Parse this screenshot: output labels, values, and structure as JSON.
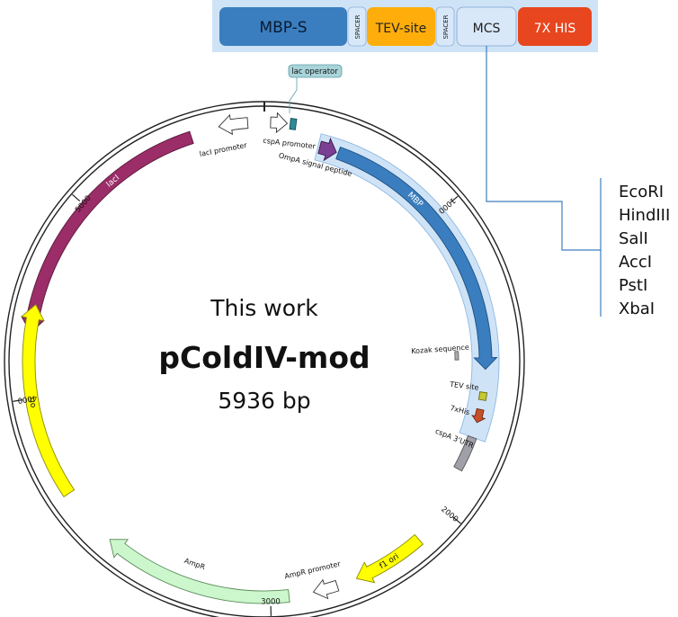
{
  "plasmid": {
    "label": "This work",
    "name": "pColdIV-mod",
    "size": "5936 bp"
  },
  "construct": {
    "segments": [
      {
        "label": "MBP-S",
        "color": "#3a7ebf"
      },
      {
        "label": "SPACER",
        "color": "#d8e8f8"
      },
      {
        "label": "TEV-site",
        "color": "#ffad0a"
      },
      {
        "label": "SPACER",
        "color": "#d8e8f8"
      },
      {
        "label": "MCS",
        "color": "#d8e8f8"
      },
      {
        "label": "7X HIS",
        "color": "#e8461e"
      }
    ],
    "background_color": "#cfe3f7"
  },
  "mcs_sites": [
    "EcoRI",
    "HindIII",
    "SalI",
    "AccI",
    "PstI",
    "XbaI"
  ],
  "ticks": [
    "5000",
    "1000",
    "4000",
    "2000",
    "3000"
  ],
  "features": {
    "lac_operator": "lac operator",
    "laci_promoter": "lacI promoter",
    "cspa_promoter": "cspA promoter",
    "ompa": "OmpA signal peptide",
    "laci": "lacI",
    "mbp": "MBP",
    "kozak": "Kozak sequence",
    "tev": "TEV site",
    "his": "7xHis",
    "cspa_utr": "cspA 3'UTR",
    "ori": "ori",
    "f1_ori": "f1 ori",
    "ampr": "AmpR",
    "ampr_promoter": "AmpR promoter"
  },
  "colors": {
    "laci": "#9b2d68",
    "mbp": "#3a7ebf",
    "ompa": "#7b3f93",
    "ori": "#ffff00",
    "ampr": "#ccf7cc",
    "highlight": "#cfe3f7",
    "line": "#3f7fbf",
    "utr": "#a0a0a8",
    "tev": "#c8c832",
    "his": "#c85028",
    "operator": "#2d8a9a",
    "lac_tag": "#a9d4d9"
  }
}
